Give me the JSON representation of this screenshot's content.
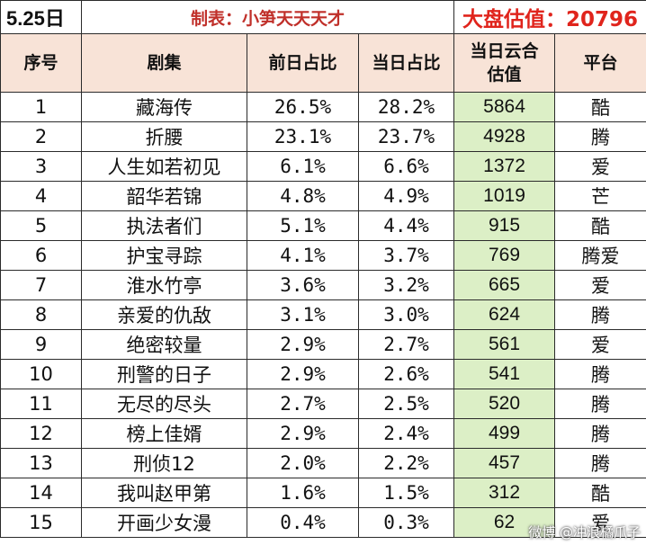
{
  "title": {
    "date": "5.25日",
    "maker": "制表：小笋天天天才",
    "market_estimate": "大盘估值：20796"
  },
  "headers": [
    "序号",
    "剧集",
    "前日占比",
    "当日占比",
    "当日云合\n估值",
    "平台"
  ],
  "rows": [
    {
      "no": "1",
      "name": "藏海传",
      "prev": "26.5%",
      "today": "28.2%",
      "cloud": "5864",
      "platform": "酷"
    },
    {
      "no": "2",
      "name": "折腰",
      "prev": "23.1%",
      "today": "23.7%",
      "cloud": "4928",
      "platform": "腾"
    },
    {
      "no": "3",
      "name": "人生如若初见",
      "prev": "6.1%",
      "today": "6.6%",
      "cloud": "1372",
      "platform": "爱"
    },
    {
      "no": "4",
      "name": "韶华若锦",
      "prev": "4.8%",
      "today": "4.9%",
      "cloud": "1019",
      "platform": "芒"
    },
    {
      "no": "5",
      "name": "执法者们",
      "prev": "5.1%",
      "today": "4.4%",
      "cloud": "915",
      "platform": "酷"
    },
    {
      "no": "6",
      "name": "护宝寻踪",
      "prev": "4.1%",
      "today": "3.7%",
      "cloud": "769",
      "platform": "腾爱"
    },
    {
      "no": "7",
      "name": "淮水竹亭",
      "prev": "3.6%",
      "today": "3.2%",
      "cloud": "665",
      "platform": "爱"
    },
    {
      "no": "8",
      "name": "亲爱的仇敌",
      "prev": "3.1%",
      "today": "3.0%",
      "cloud": "624",
      "platform": "腾"
    },
    {
      "no": "9",
      "name": "绝密较量",
      "prev": "2.9%",
      "today": "2.7%",
      "cloud": "561",
      "platform": "爱"
    },
    {
      "no": "10",
      "name": "刑警的日子",
      "prev": "2.9%",
      "today": "2.6%",
      "cloud": "541",
      "platform": "腾"
    },
    {
      "no": "11",
      "name": "无尽的尽头",
      "prev": "2.7%",
      "today": "2.5%",
      "cloud": "520",
      "platform": "腾"
    },
    {
      "no": "12",
      "name": "榜上佳婿",
      "prev": "2.9%",
      "today": "2.4%",
      "cloud": "499",
      "platform": "腾"
    },
    {
      "no": "13",
      "name": "刑侦12",
      "prev": "2.0%",
      "today": "2.2%",
      "cloud": "457",
      "platform": "腾"
    },
    {
      "no": "14",
      "name": "我叫赵甲第",
      "prev": "1.6%",
      "today": "1.5%",
      "cloud": "312",
      "platform": "酷"
    },
    {
      "no": "15",
      "name": "开画少女漫",
      "prev": "0.4%",
      "today": "0.3%",
      "cloud": "62",
      "platform": "爱"
    }
  ],
  "watermark": "微博 @冲浪橘爪子"
}
